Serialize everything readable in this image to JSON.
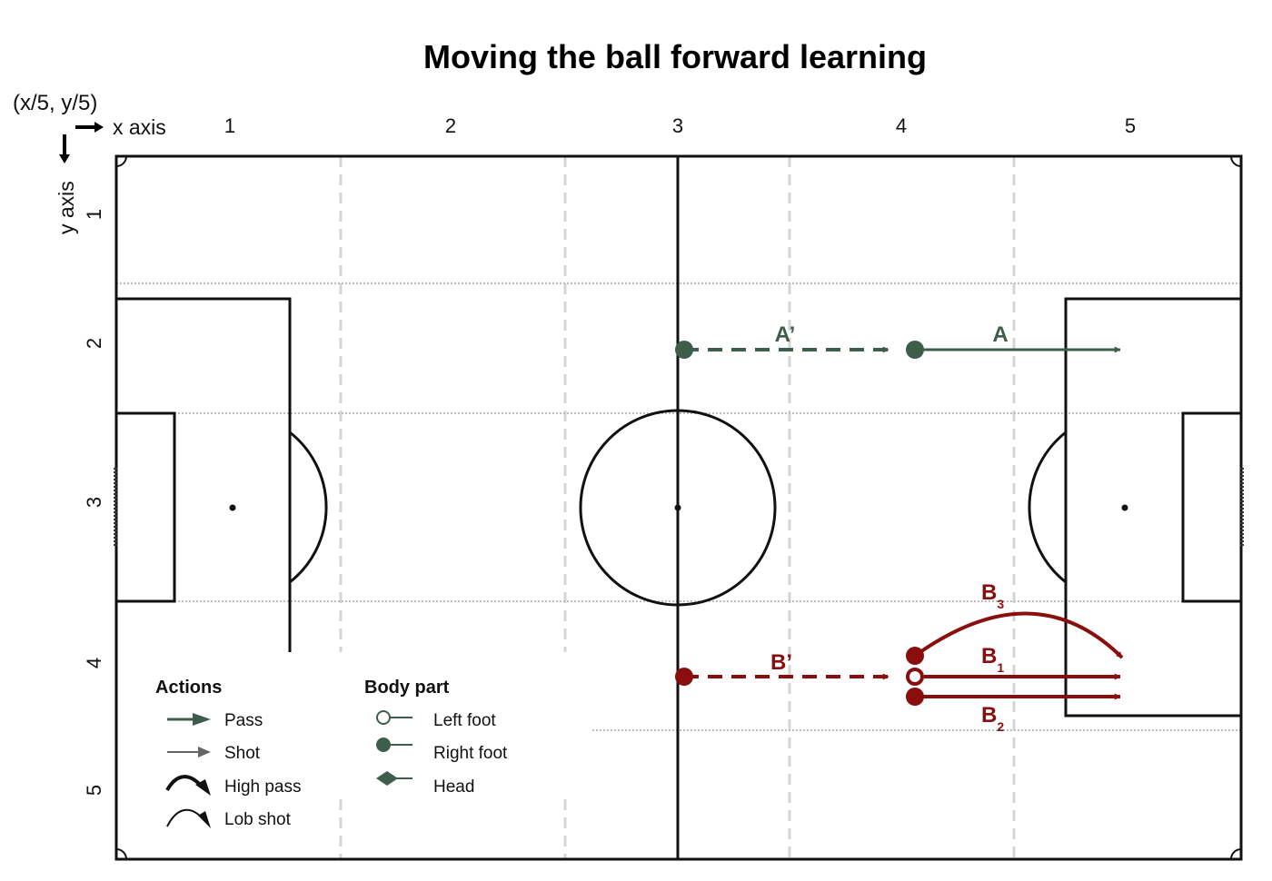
{
  "title": "Moving the ball forward learning",
  "coord_note": "(x/5, y/5)",
  "axes": {
    "x_axis_label": "x axis",
    "y_axis_label": "y axis",
    "x_ticks": [
      "1",
      "2",
      "3",
      "4",
      "5"
    ],
    "y_ticks": [
      "1",
      "2",
      "3",
      "4",
      "5"
    ]
  },
  "actions": {
    "A_prime": {
      "label": "A’",
      "type": "pass",
      "style": "dashed",
      "color": "#3d5e4b"
    },
    "A": {
      "label": "A",
      "type": "pass",
      "style": "solid",
      "color": "#3d5e4b"
    },
    "B_prime": {
      "label": "B’",
      "type": "pass",
      "style": "dashed",
      "color": "#8b0e0e"
    },
    "B1": {
      "label": "B",
      "sub": "1",
      "type": "pass",
      "body_part": "left foot",
      "color": "#8b0e0e"
    },
    "B2": {
      "label": "B",
      "sub": "2",
      "type": "pass",
      "body_part": "right foot",
      "color": "#8b0e0e"
    },
    "B3": {
      "label": "B",
      "sub": "3",
      "type": "high pass",
      "body_part": "right foot",
      "color": "#8b0e0e"
    }
  },
  "legend": {
    "actions_title": "Actions",
    "body_part_title": "Body part",
    "actions_items": [
      "Pass",
      "Shot",
      "High pass",
      "Lob shot"
    ],
    "body_part_items": [
      "Left foot",
      "Right foot",
      "Head"
    ]
  }
}
